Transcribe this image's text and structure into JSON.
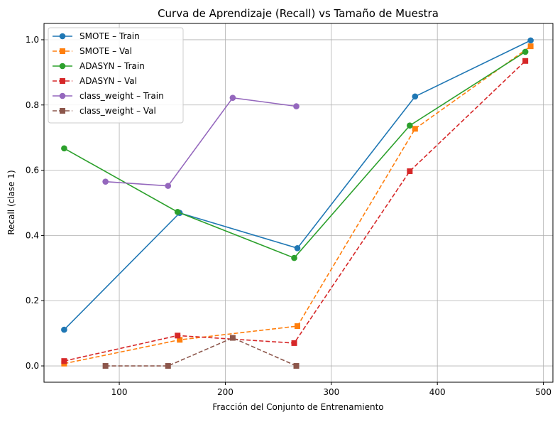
{
  "chart_data": {
    "type": "line",
    "title": "Curva de Aprendizaje (Recall) vs Tamaño de Muestra",
    "xlabel": "Fracción del Conjunto de Entrenamiento",
    "ylabel": "Recall (clase 1)",
    "xlim": [
      29,
      509
    ],
    "ylim": [
      -0.05,
      1.05
    ],
    "xticks": [
      100,
      200,
      300,
      400,
      500
    ],
    "yticks": [
      0.0,
      0.2,
      0.4,
      0.6,
      0.8,
      1.0
    ],
    "xtick_labels": [
      "100",
      "200",
      "300",
      "400",
      "500"
    ],
    "ytick_labels": [
      "0.0",
      "0.2",
      "0.4",
      "0.6",
      "0.8",
      "1.0"
    ],
    "grid": true,
    "legend_position": "upper-left",
    "series": [
      {
        "name": "SMOTE – Train",
        "color": "#1f77b4",
        "linestyle": "solid",
        "marker": "circle",
        "x": [
          48,
          157,
          268,
          379,
          488
        ],
        "y": [
          0.111,
          0.469,
          0.361,
          0.826,
          0.998
        ]
      },
      {
        "name": "SMOTE – Val",
        "color": "#ff7f0e",
        "linestyle": "dashed",
        "marker": "square",
        "x": [
          48,
          157,
          268,
          379,
          488
        ],
        "y": [
          0.007,
          0.08,
          0.122,
          0.727,
          0.98
        ]
      },
      {
        "name": "ADASYN – Train",
        "color": "#2ca02c",
        "linestyle": "solid",
        "marker": "circle",
        "x": [
          48,
          155,
          265,
          374,
          483
        ],
        "y": [
          0.667,
          0.472,
          0.331,
          0.737,
          0.963
        ]
      },
      {
        "name": "ADASYN – Val",
        "color": "#d62728",
        "linestyle": "dashed",
        "marker": "square",
        "x": [
          48,
          155,
          265,
          374,
          483
        ],
        "y": [
          0.015,
          0.093,
          0.07,
          0.597,
          0.935
        ]
      },
      {
        "name": "class_weight – Train",
        "color": "#9467bd",
        "linestyle": "solid",
        "marker": "circle",
        "x": [
          87,
          146,
          207,
          267
        ],
        "y": [
          0.565,
          0.552,
          0.822,
          0.796
        ]
      },
      {
        "name": "class_weight – Val",
        "color": "#8c564b",
        "linestyle": "dashed",
        "marker": "square",
        "x": [
          87,
          146,
          207,
          267
        ],
        "y": [
          0.0,
          0.0,
          0.086,
          0.0
        ]
      }
    ]
  }
}
